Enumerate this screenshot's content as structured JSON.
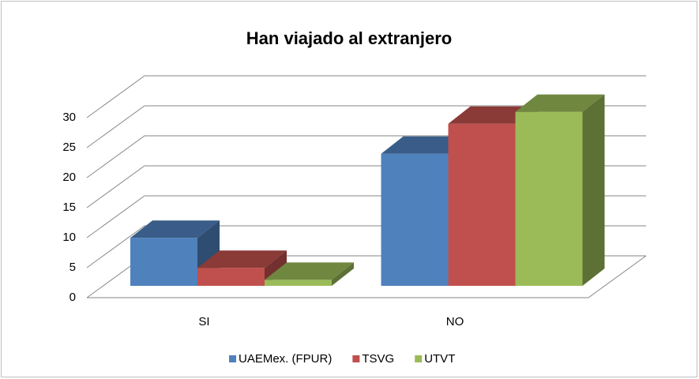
{
  "chart_data": {
    "type": "bar3d",
    "title": "Han viajado al extranjero",
    "categories": [
      "SI",
      "NO"
    ],
    "series": [
      {
        "name": "UAEMex. (FPUR)",
        "color": "#4f81bd",
        "values": [
          8,
          22
        ]
      },
      {
        "name": "TSVG",
        "color": "#c0504d",
        "values": [
          3,
          27
        ]
      },
      {
        "name": "UTVT",
        "color": "#9bbb59",
        "values": [
          1,
          29
        ]
      }
    ],
    "ylim": [
      0,
      30
    ],
    "yticks": [
      0,
      5,
      10,
      15,
      20,
      25,
      30
    ],
    "grid": true,
    "legend": "bottom"
  }
}
